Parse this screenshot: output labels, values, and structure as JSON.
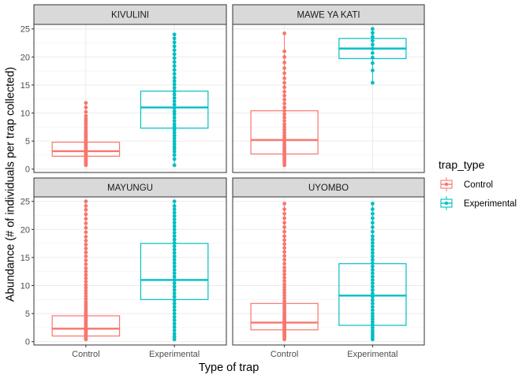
{
  "chart_data": {
    "type": "boxplot",
    "xlabel": "Type of trap",
    "ylabel": "Abundance (# of individuals per trap collected)",
    "categories": [
      "Control",
      "Experimental"
    ],
    "y_ticks": [
      0,
      5,
      10,
      15,
      20,
      25
    ],
    "ylim": [
      -0.6,
      25.8
    ],
    "grid": true,
    "legend": {
      "title": "trap_type",
      "position": "right",
      "entries": [
        {
          "label": "Control",
          "color": "#F8766D"
        },
        {
          "label": "Experimental",
          "color": "#00BFC4"
        }
      ]
    },
    "panels": [
      {
        "title": "KIVULINI",
        "boxes": [
          {
            "category": "Control",
            "q1": 2.3,
            "median": 3.2,
            "q3": 4.8,
            "whisker_low": 0.7,
            "whisker_high": 11.8,
            "points": [
              0.7,
              0.9,
              1.0,
              1.2,
              1.4,
              1.6,
              1.8,
              2.0,
              2.2,
              2.4,
              2.6,
              2.8,
              3.0,
              3.2,
              3.4,
              3.6,
              3.8,
              4.0,
              4.3,
              4.6,
              4.9,
              5.2,
              5.5,
              5.8,
              6.0,
              6.3,
              6.6,
              7.0,
              7.4,
              7.8,
              8.2,
              8.6,
              9.0,
              9.5,
              10.2,
              11.0,
              11.8
            ]
          },
          {
            "category": "Experimental",
            "q1": 7.3,
            "median": 11.0,
            "q3": 13.9,
            "whisker_low": 0.7,
            "whisker_high": 24.0,
            "points": [
              0.7,
              1.8,
              2.5,
              3.1,
              3.6,
              4.0,
              4.5,
              5.0,
              5.5,
              6.0,
              6.5,
              7.0,
              7.5,
              8.0,
              8.6,
              9.2,
              9.8,
              10.3,
              10.9,
              11.5,
              12.1,
              12.7,
              13.3,
              13.9,
              14.5,
              15.1,
              15.7,
              16.3,
              17.0,
              17.7,
              18.4,
              19.1,
              19.8,
              20.5,
              21.2,
              21.9,
              22.6,
              23.3,
              24.0
            ]
          }
        ]
      },
      {
        "title": "MAWE YA KATI",
        "boxes": [
          {
            "category": "Control",
            "q1": 2.7,
            "median": 5.2,
            "q3": 10.4,
            "whisker_low": 0.7,
            "whisker_high": 24.2,
            "points": [
              0.7,
              1.0,
              1.3,
              1.6,
              1.9,
              2.2,
              2.5,
              2.8,
              3.1,
              3.4,
              3.7,
              4.0,
              4.4,
              4.8,
              5.2,
              5.6,
              6.0,
              6.5,
              7.0,
              7.5,
              8.0,
              8.6,
              9.2,
              9.8,
              10.4,
              11.0,
              11.7,
              12.4,
              13.1,
              13.8,
              14.6,
              15.4,
              16.2,
              17.1,
              18.0,
              19.0,
              20.0,
              21.0,
              24.2
            ]
          },
          {
            "category": "Experimental",
            "q1": 19.7,
            "median": 21.5,
            "q3": 23.3,
            "whisker_low": 15.4,
            "whisker_high": 25.0,
            "points": [
              15.4,
              17.6,
              18.9,
              19.9,
              20.7,
              21.5,
              22.2,
              22.9,
              23.6,
              24.3,
              25.0
            ]
          }
        ]
      },
      {
        "title": "MAYUNGU",
        "boxes": [
          {
            "category": "Control",
            "q1": 1.0,
            "median": 2.3,
            "q3": 4.6,
            "whisker_low": 0.4,
            "whisker_high": 25.0,
            "points": [
              0.4,
              0.6,
              0.8,
              1.0,
              1.2,
              1.4,
              1.6,
              1.8,
              2.0,
              2.2,
              2.4,
              2.6,
              2.8,
              3.0,
              3.3,
              3.6,
              3.9,
              4.2,
              4.5,
              4.8,
              5.1,
              5.5,
              5.9,
              6.3,
              6.7,
              7.1,
              7.6,
              8.1,
              8.6,
              9.1,
              9.6,
              10.1,
              10.7,
              11.3,
              11.9,
              12.5,
              13.1,
              13.8,
              14.5,
              15.2,
              15.9,
              16.6,
              17.3,
              18.0,
              18.7,
              19.5,
              20.3,
              21.1,
              21.9,
              22.7,
              23.5,
              24.2,
              25.0
            ]
          },
          {
            "category": "Experimental",
            "q1": 7.5,
            "median": 11.0,
            "q3": 17.5,
            "whisker_low": 0.4,
            "whisker_high": 25.0,
            "points": [
              0.4,
              0.9,
              1.4,
              2.0,
              2.6,
              3.2,
              3.8,
              4.4,
              5.0,
              5.6,
              6.2,
              6.8,
              7.4,
              8.0,
              8.6,
              9.2,
              9.8,
              10.4,
              11.0,
              11.6,
              12.2,
              12.8,
              13.4,
              14.0,
              14.6,
              15.2,
              15.8,
              16.4,
              17.0,
              17.6,
              18.2,
              18.8,
              19.4,
              20.0,
              20.6,
              21.2,
              21.8,
              22.4,
              23.0,
              23.6,
              24.2,
              25.0
            ]
          }
        ]
      },
      {
        "title": "UYOMBO",
        "boxes": [
          {
            "category": "Control",
            "q1": 2.1,
            "median": 3.4,
            "q3": 6.8,
            "whisker_low": 0.4,
            "whisker_high": 24.6,
            "points": [
              0.4,
              0.6,
              0.8,
              1.0,
              1.2,
              1.4,
              1.6,
              1.8,
              2.0,
              2.2,
              2.4,
              2.6,
              2.8,
              3.0,
              3.3,
              3.6,
              3.9,
              4.2,
              4.5,
              4.8,
              5.2,
              5.6,
              6.0,
              6.4,
              6.8,
              7.2,
              7.7,
              8.2,
              8.7,
              9.2,
              9.7,
              10.2,
              10.8,
              11.4,
              12.0,
              12.6,
              13.2,
              13.9,
              14.6,
              15.3,
              16.0,
              16.7,
              17.4,
              18.1,
              18.8,
              19.6,
              20.4,
              21.2,
              22.0,
              22.8,
              23.6,
              24.6
            ]
          },
          {
            "category": "Experimental",
            "q1": 2.9,
            "median": 8.2,
            "q3": 13.9,
            "whisker_low": 0.4,
            "whisker_high": 24.6,
            "points": [
              0.4,
              0.8,
              1.2,
              1.6,
              2.0,
              2.5,
              3.0,
              3.5,
              4.0,
              4.5,
              5.0,
              5.6,
              6.2,
              6.8,
              7.4,
              8.0,
              8.6,
              9.2,
              9.8,
              10.4,
              11.0,
              11.6,
              12.2,
              12.8,
              13.4,
              14.0,
              14.6,
              15.2,
              15.8,
              16.4,
              17.0,
              17.6,
              18.2,
              18.8,
              19.6,
              20.4,
              21.2,
              22.0,
              22.8,
              23.6,
              24.6
            ]
          }
        ]
      }
    ]
  }
}
